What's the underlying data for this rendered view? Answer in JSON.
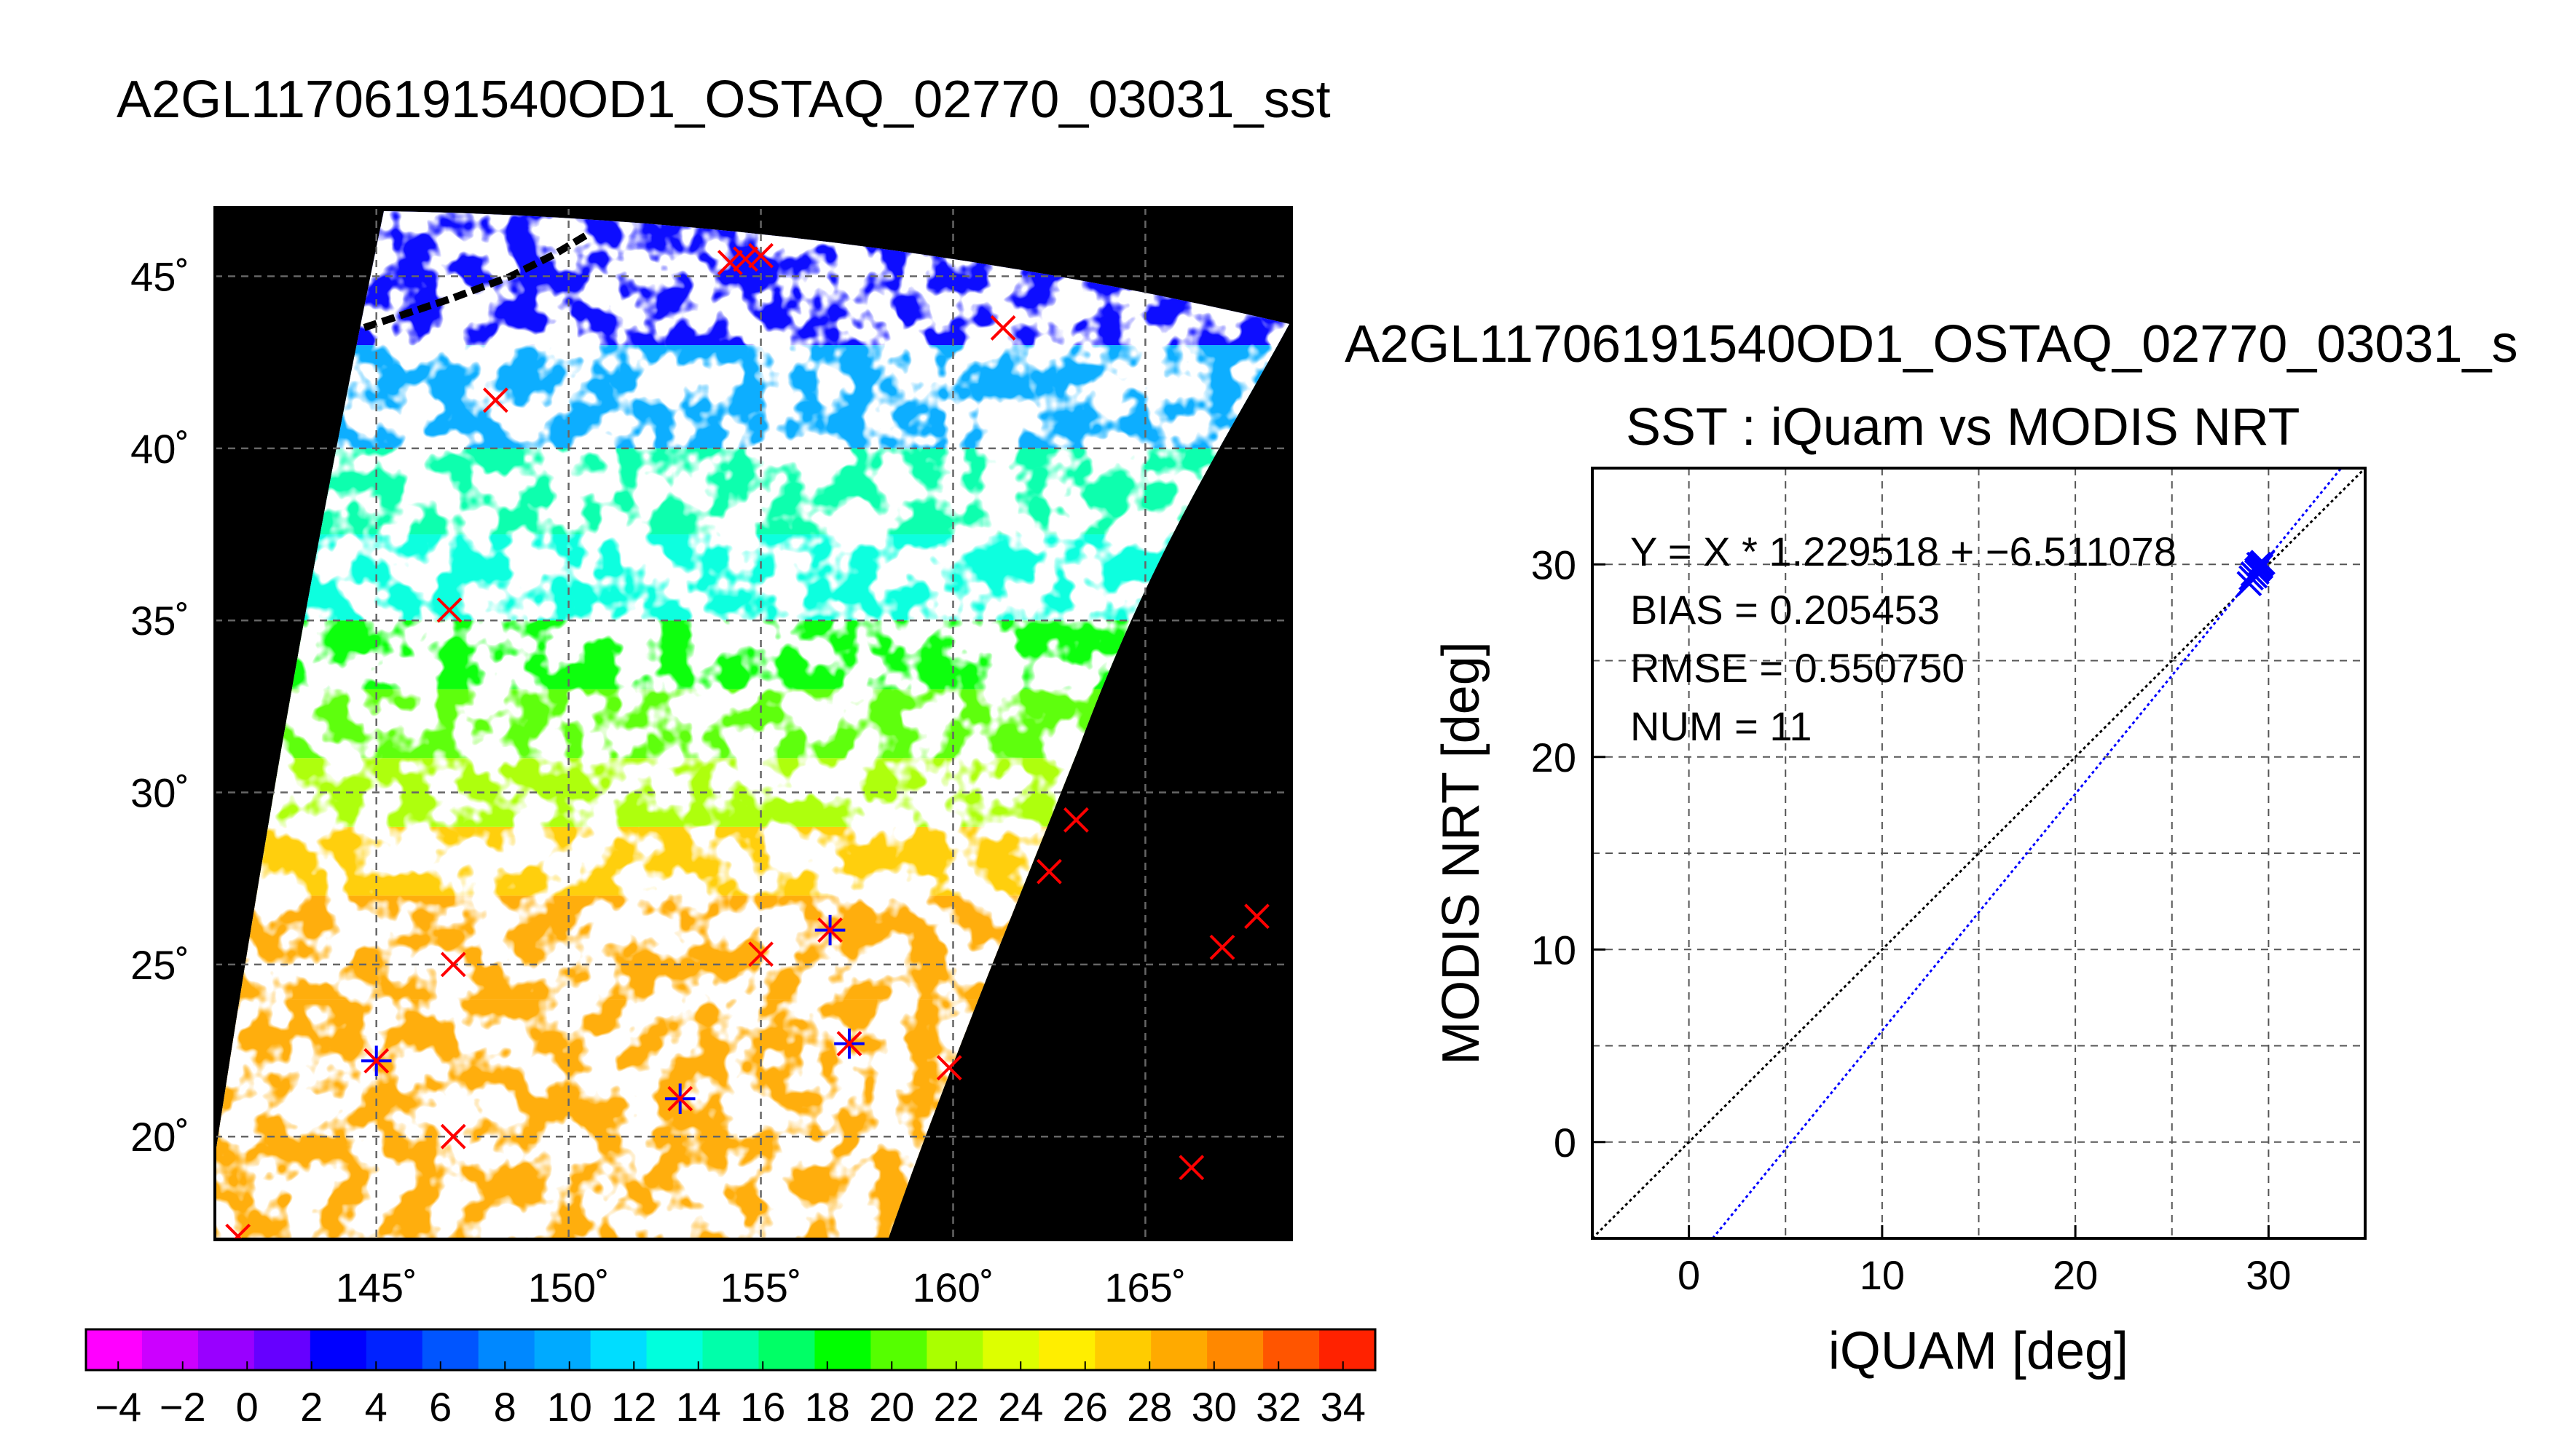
{
  "figure": {
    "main_title": "A2GL11706191540OD1_OSTAQ_02770_03031_sst"
  },
  "map": {
    "lon_ticks": [
      "145˚",
      "150˚",
      "155˚",
      "160˚",
      "165˚"
    ],
    "lat_ticks": [
      "45˚",
      "40˚",
      "35˚",
      "30˚",
      "25˚",
      "20˚"
    ],
    "lon_range": [
      140.8,
      168.8
    ],
    "lat_range": [
      17,
      47
    ],
    "background_color": "#000000",
    "cloud_mask_color": "#ffffff",
    "grid": true,
    "match_markers": [
      {
        "lon": 145.0,
        "lat": 22.2,
        "matched": true
      },
      {
        "lon": 157.3,
        "lat": 22.7,
        "matched": true
      },
      {
        "lon": 156.8,
        "lat": 26.0,
        "matched": true
      },
      {
        "lon": 152.9,
        "lat": 21.1,
        "matched": true
      },
      {
        "lon": 141.4,
        "lat": 17.1,
        "matched": false
      },
      {
        "lon": 147.0,
        "lat": 20.0,
        "matched": false
      },
      {
        "lon": 147.0,
        "lat": 25.0,
        "matched": false
      },
      {
        "lon": 155.0,
        "lat": 25.3,
        "matched": false
      },
      {
        "lon": 146.9,
        "lat": 35.3,
        "matched": false
      },
      {
        "lon": 148.1,
        "lat": 41.4,
        "matched": false
      },
      {
        "lon": 154.2,
        "lat": 45.4,
        "matched": false
      },
      {
        "lon": 154.6,
        "lat": 45.5,
        "matched": false
      },
      {
        "lon": 155.0,
        "lat": 45.6,
        "matched": false
      },
      {
        "lon": 161.3,
        "lat": 43.5,
        "matched": false
      },
      {
        "lon": 159.9,
        "lat": 22.0,
        "matched": false
      },
      {
        "lon": 162.5,
        "lat": 27.7,
        "matched": false
      },
      {
        "lon": 163.2,
        "lat": 29.2,
        "matched": false
      },
      {
        "lon": 166.2,
        "lat": 19.1,
        "matched": false
      },
      {
        "lon": 167.0,
        "lat": 25.5,
        "matched": false
      },
      {
        "lon": 167.9,
        "lat": 26.4,
        "matched": false
      }
    ]
  },
  "colorbar": {
    "min": -5,
    "max": 35,
    "step": 2,
    "tick_labels": [
      "−4",
      "−2",
      "0",
      "2",
      "4",
      "6",
      "8",
      "10",
      "12",
      "14",
      "16",
      "18",
      "20",
      "22",
      "24",
      "26",
      "28",
      "30",
      "32",
      "34"
    ],
    "colors": [
      "#ff00ff",
      "#cc00ff",
      "#9900ff",
      "#6600ff",
      "#0000ff",
      "#0022ff",
      "#0055ff",
      "#0088ff",
      "#00aaff",
      "#00ddff",
      "#00ffdd",
      "#00ffaa",
      "#00ff66",
      "#00ff00",
      "#55ff00",
      "#aaff00",
      "#ddff00",
      "#ffee00",
      "#ffcc00",
      "#ffaa00",
      "#ff8800",
      "#ff5500",
      "#ff2200"
    ]
  },
  "scatter": {
    "file_title": "A2GL11706191540OD1_OSTAQ_02770_03031_s",
    "title": "SST : iQuam vs MODIS NRT",
    "xlabel": "iQUAM [deg]",
    "ylabel": "MODIS NRT [deg]",
    "stats": [
      "Y = X * 1.229518 + −6.511078",
      "BIAS = 0.205453",
      "RMSE = 0.550750",
      "NUM = 11"
    ]
  },
  "chart_data": {
    "type": "scatter",
    "title": "SST : iQuam vs MODIS NRT",
    "xlabel": "iQUAM [deg]",
    "ylabel": "MODIS NRT [deg]",
    "xlim": [
      -5,
      35
    ],
    "ylim": [
      -5,
      35
    ],
    "x_ticks": [
      0,
      10,
      20,
      30
    ],
    "y_ticks": [
      0,
      10,
      20,
      30
    ],
    "x_tick_labels": [
      "0",
      "10",
      "20",
      "30"
    ],
    "y_tick_labels": [
      "0",
      "10",
      "20",
      "30"
    ],
    "grid": true,
    "series": [
      {
        "points": [
          {
            "x": 29.0,
            "y": 29.0
          },
          {
            "x": 29.1,
            "y": 29.3
          },
          {
            "x": 29.2,
            "y": 29.5
          },
          {
            "x": 29.3,
            "y": 29.4
          },
          {
            "x": 29.4,
            "y": 29.7
          },
          {
            "x": 29.5,
            "y": 30.0
          },
          {
            "x": 29.5,
            "y": 29.8
          },
          {
            "x": 29.6,
            "y": 30.0
          },
          {
            "x": 29.7,
            "y": 30.1
          },
          {
            "x": 29.4,
            "y": 29.6
          },
          {
            "x": 29.6,
            "y": 29.9
          }
        ],
        "color": "#0000ff",
        "marker": "x"
      }
    ],
    "lines": [
      {
        "slope": 1.0,
        "intercept": 0.0,
        "color": "#000000",
        "style": "dotted"
      },
      {
        "slope": 1.229518,
        "intercept": -6.511078,
        "color": "#0000ff",
        "style": "dotted"
      }
    ]
  }
}
